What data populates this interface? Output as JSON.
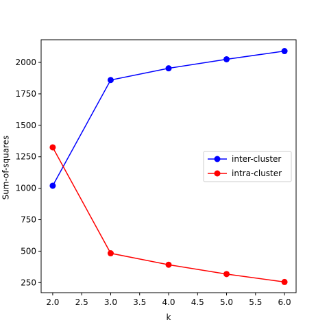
{
  "chart_data": {
    "type": "line",
    "title": "",
    "xlabel": "k",
    "ylabel": "Sum-of-squares",
    "x": [
      2,
      3,
      4,
      5,
      6
    ],
    "xlim": [
      1.8,
      6.2
    ],
    "ylim": [
      170,
      2180
    ],
    "xticks": [
      2.0,
      2.5,
      3.0,
      3.5,
      4.0,
      4.5,
      5.0,
      5.5,
      6.0
    ],
    "xtick_labels": [
      "2.0",
      "2.5",
      "3.0",
      "3.5",
      "4.0",
      "4.5",
      "5.0",
      "5.5",
      "6.0"
    ],
    "yticks": [
      250,
      500,
      750,
      1000,
      1250,
      1500,
      1750,
      2000
    ],
    "ytick_labels": [
      "250",
      "500",
      "750",
      "1000",
      "1250",
      "1500",
      "1750",
      "2000"
    ],
    "grid": false,
    "legend_position": "center-right",
    "series": [
      {
        "name": "inter-cluster",
        "color": "#0000ff",
        "marker": "circle",
        "values": [
          1020,
          1860,
          1953,
          2025,
          2090
        ]
      },
      {
        "name": "intra-cluster",
        "color": "#ff0000",
        "marker": "circle",
        "values": [
          1325,
          483,
          392,
          318,
          255
        ]
      }
    ]
  }
}
